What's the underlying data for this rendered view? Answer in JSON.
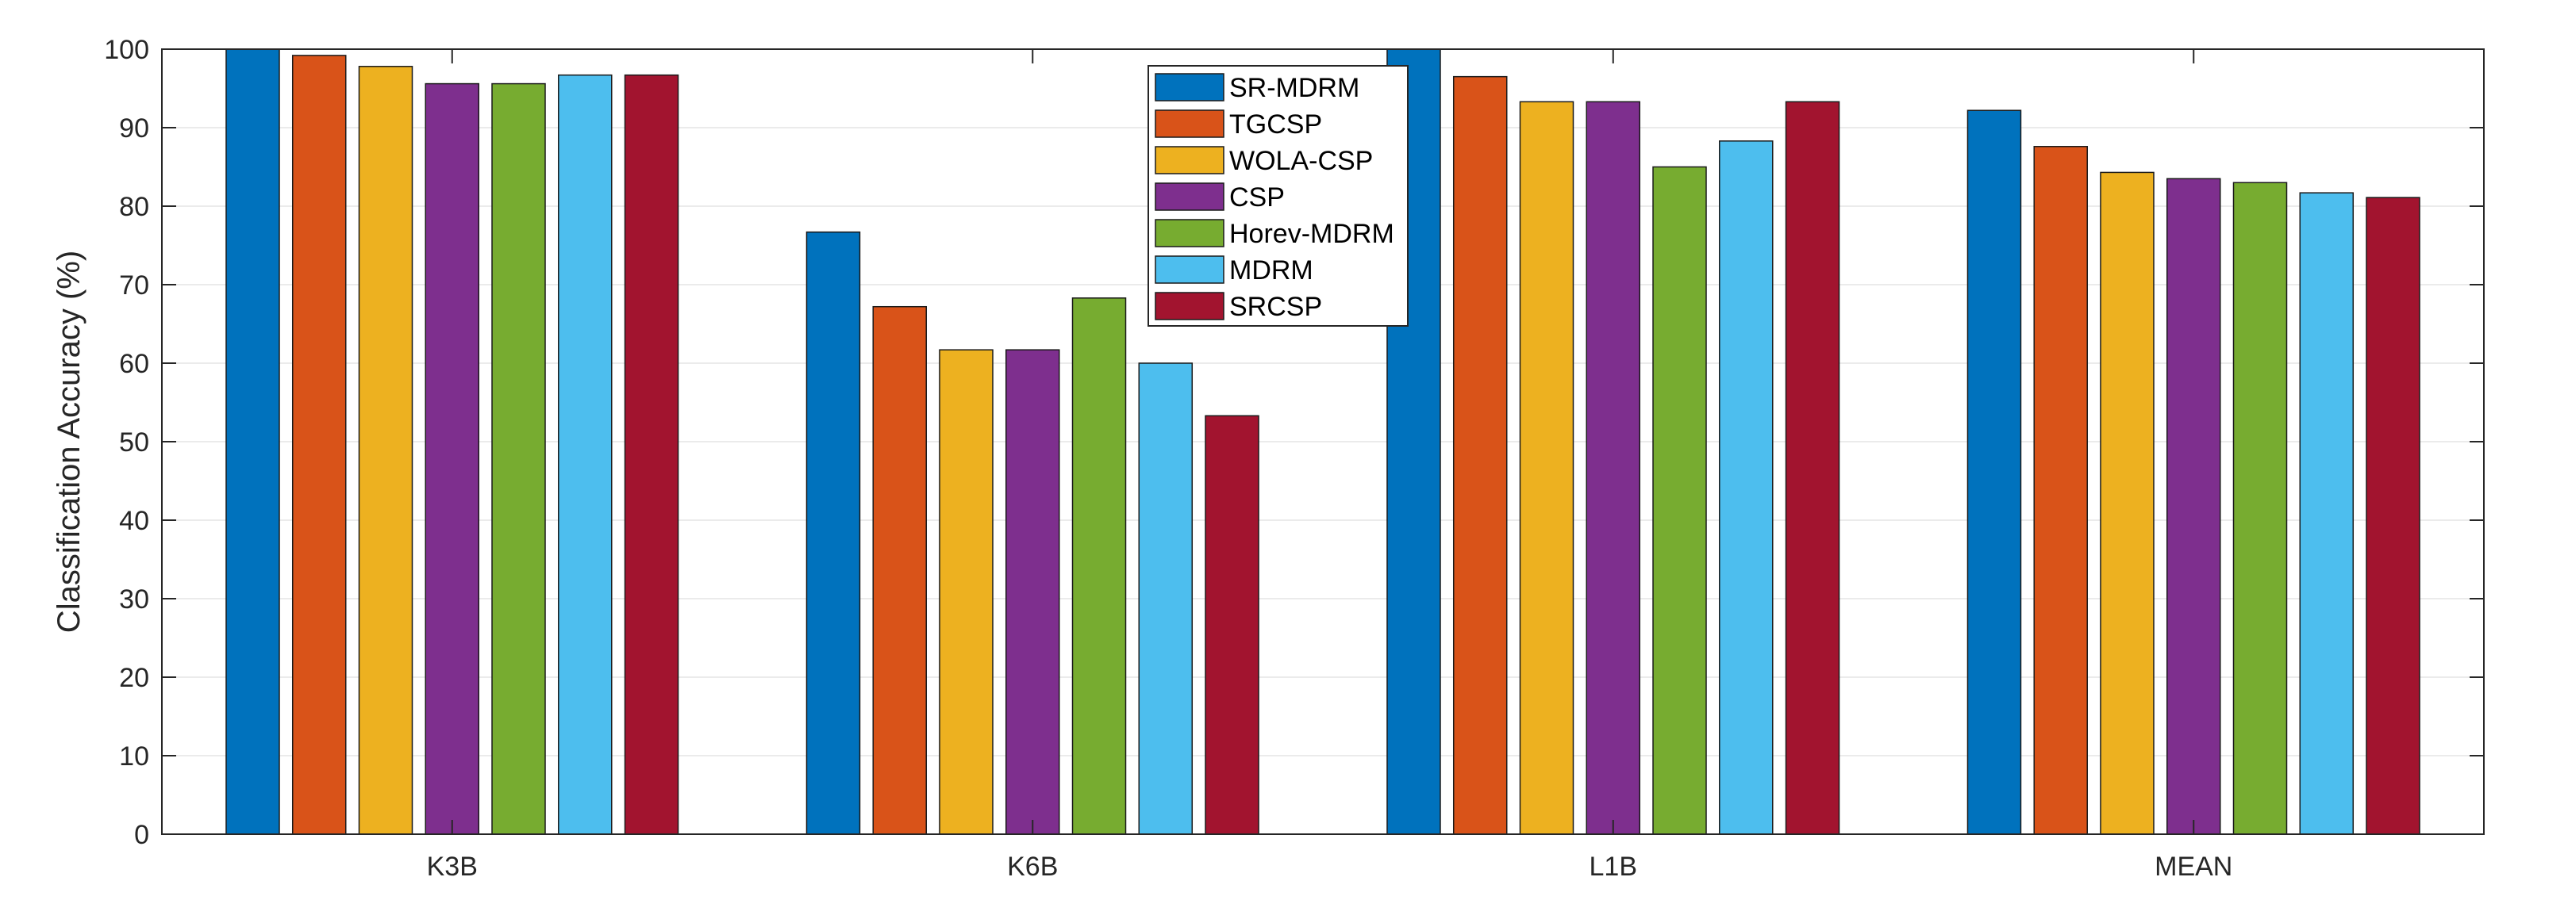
{
  "chart_data": {
    "type": "bar",
    "title": "",
    "xlabel": "",
    "ylabel": "Classification Accuracy (%)",
    "categories": [
      "K3B",
      "K6B",
      "L1B",
      "MEAN"
    ],
    "ylim": [
      0,
      100
    ],
    "yticks": [
      0,
      10,
      20,
      30,
      40,
      50,
      60,
      70,
      80,
      90,
      100
    ],
    "grid": true,
    "legend_position": "top-center",
    "series": [
      {
        "name": "SR-MDRM",
        "color": "#0072BD",
        "values": [
          100,
          76.7,
          100,
          92.2
        ]
      },
      {
        "name": "TGCSP",
        "color": "#D95319",
        "values": [
          99.2,
          67.2,
          96.5,
          87.6
        ]
      },
      {
        "name": "WOLA-CSP",
        "color": "#EDB120",
        "values": [
          97.8,
          61.7,
          93.3,
          84.3
        ]
      },
      {
        "name": "CSP",
        "color": "#7E2F8E",
        "values": [
          95.6,
          61.7,
          93.3,
          83.5
        ]
      },
      {
        "name": "Horev-MDRM",
        "color": "#77AC30",
        "values": [
          95.6,
          68.3,
          85.0,
          83.0
        ]
      },
      {
        "name": "MDRM",
        "color": "#4DBEEE",
        "values": [
          96.7,
          60.0,
          88.3,
          81.7
        ]
      },
      {
        "name": "SRCSP",
        "color": "#A2142F",
        "values": [
          96.7,
          53.3,
          93.3,
          81.1
        ]
      }
    ]
  }
}
